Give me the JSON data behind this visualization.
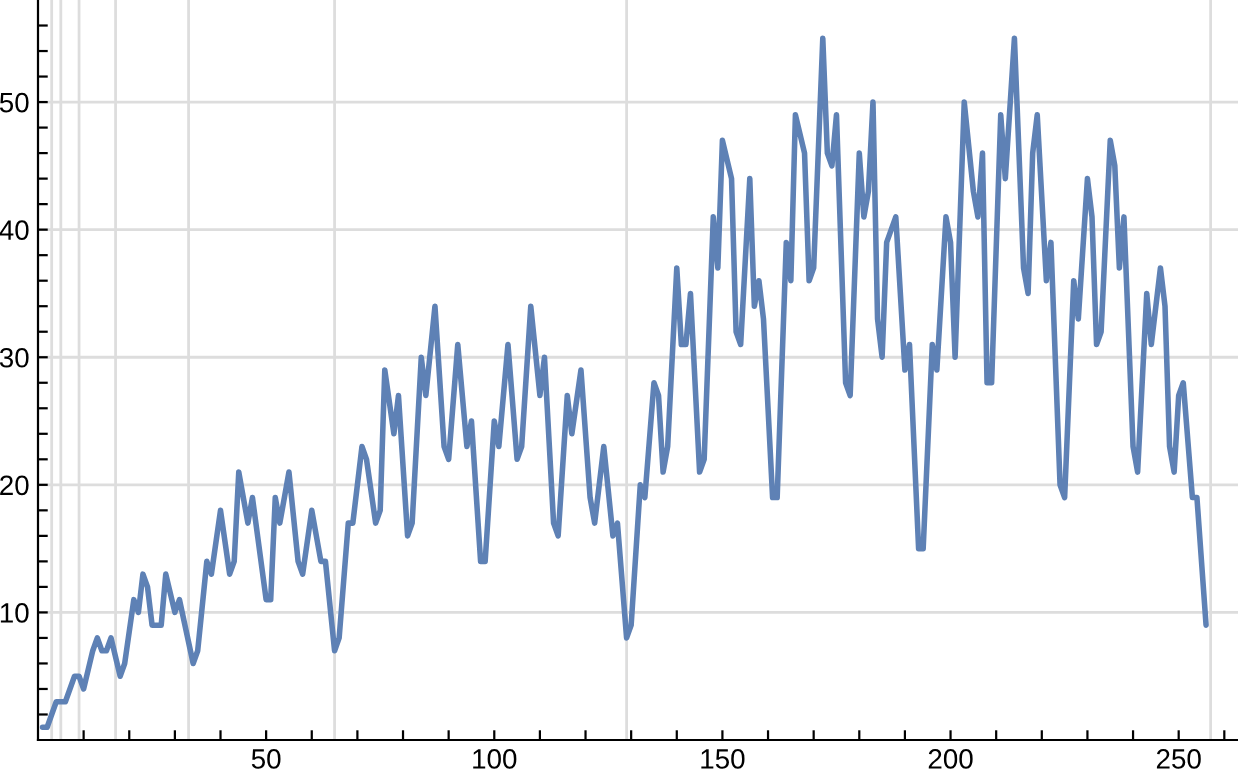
{
  "chart_data": {
    "type": "line",
    "x": [
      1,
      2,
      4,
      6,
      8,
      9,
      10,
      12,
      13,
      14,
      15,
      16,
      18,
      19,
      21,
      22,
      23,
      24,
      25,
      27,
      28,
      30,
      31,
      34,
      35,
      37,
      38,
      40,
      42,
      43,
      44,
      46,
      47,
      50,
      51,
      52,
      53,
      55,
      57,
      58,
      60,
      62,
      63,
      65,
      66,
      68,
      69,
      71,
      72,
      74,
      75,
      76,
      78,
      79,
      81,
      82,
      84,
      85,
      87,
      89,
      90,
      92,
      94,
      95,
      97,
      98,
      100,
      101,
      103,
      105,
      106,
      108,
      110,
      111,
      113,
      114,
      116,
      117,
      119,
      121,
      122,
      124,
      126,
      127,
      129,
      130,
      132,
      133,
      135,
      136,
      137,
      138,
      140,
      141,
      142,
      143,
      145,
      146,
      148,
      149,
      150,
      152,
      153,
      154,
      156,
      157,
      158,
      159,
      161,
      162,
      164,
      165,
      166,
      168,
      169,
      170,
      172,
      173,
      174,
      175,
      177,
      178,
      180,
      181,
      182,
      183,
      184,
      185,
      186,
      188,
      190,
      191,
      193,
      194,
      196,
      197,
      199,
      200,
      201,
      203,
      205,
      206,
      207,
      208,
      209,
      211,
      212,
      214,
      216,
      217,
      218,
      219,
      221,
      222,
      224,
      225,
      227,
      228,
      230,
      231,
      232,
      233,
      235,
      236,
      237,
      238,
      240,
      241,
      243,
      244,
      246,
      247,
      248,
      249,
      250,
      251,
      253,
      254,
      256
    ],
    "series": [
      {
        "color": "#5e81b5",
        "values": [
          1,
          1,
          3,
          3,
          5,
          5,
          4,
          7,
          8,
          7,
          7,
          8,
          5,
          6,
          11,
          10,
          13,
          12,
          9,
          9,
          13,
          10,
          11,
          6,
          7,
          14,
          13,
          18,
          13,
          14,
          21,
          17,
          19,
          11,
          11,
          19,
          17,
          21,
          14,
          13,
          18,
          14,
          14,
          7,
          8,
          17,
          17,
          23,
          22,
          17,
          18,
          29,
          24,
          27,
          16,
          17,
          30,
          27,
          34,
          23,
          22,
          31,
          23,
          25,
          14,
          14,
          25,
          23,
          31,
          22,
          23,
          34,
          27,
          30,
          17,
          16,
          27,
          24,
          29,
          19,
          17,
          23,
          16,
          17,
          8,
          9,
          20,
          19,
          28,
          27,
          21,
          23,
          37,
          31,
          31,
          35,
          21,
          22,
          41,
          37,
          47,
          44,
          32,
          31,
          44,
          34,
          36,
          33,
          19,
          19,
          39,
          36,
          49,
          46,
          36,
          37,
          55,
          46,
          45,
          49,
          28,
          27,
          46,
          41,
          43,
          50,
          33,
          30,
          39,
          41,
          29,
          31,
          15,
          15,
          31,
          29,
          41,
          39,
          30,
          50,
          43,
          41,
          46,
          28,
          28,
          49,
          44,
          55,
          37,
          35,
          46,
          49,
          36,
          39,
          20,
          19,
          36,
          33,
          44,
          41,
          31,
          32,
          47,
          45,
          37,
          41,
          23,
          21,
          35,
          31,
          37,
          34,
          23,
          21,
          27,
          28,
          19,
          19,
          9
        ]
      }
    ],
    "xlim": [
      0,
      263
    ],
    "ylim": [
      0,
      58
    ],
    "xticks": [
      {
        "value": 10,
        "label": null
      },
      {
        "value": 20,
        "label": null
      },
      {
        "value": 30,
        "label": null
      },
      {
        "value": 40,
        "label": null
      },
      50,
      {
        "value": 60,
        "label": null
      },
      {
        "value": 70,
        "label": null
      },
      {
        "value": 80,
        "label": null
      },
      {
        "value": 90,
        "label": null
      },
      100,
      {
        "value": 110,
        "label": null
      },
      {
        "value": 120,
        "label": null
      },
      {
        "value": 130,
        "label": null
      },
      {
        "value": 140,
        "label": null
      },
      150,
      {
        "value": 160,
        "label": null
      },
      {
        "value": 170,
        "label": null
      },
      {
        "value": 180,
        "label": null
      },
      {
        "value": 190,
        "label": null
      },
      200,
      {
        "value": 210,
        "label": null
      },
      {
        "value": 220,
        "label": null
      },
      {
        "value": 230,
        "label": null
      },
      {
        "value": 240,
        "label": null
      },
      250,
      {
        "value": 260,
        "label": null
      }
    ],
    "yticks": [
      {
        "value": 2,
        "label": null
      },
      {
        "value": 4,
        "label": null
      },
      {
        "value": 6,
        "label": null
      },
      {
        "value": 8,
        "label": null
      },
      10,
      {
        "value": 12,
        "label": null
      },
      {
        "value": 14,
        "label": null
      },
      {
        "value": 16,
        "label": null
      },
      {
        "value": 18,
        "label": null
      },
      20,
      {
        "value": 22,
        "label": null
      },
      {
        "value": 24,
        "label": null
      },
      {
        "value": 26,
        "label": null
      },
      {
        "value": 28,
        "label": null
      },
      30,
      {
        "value": 32,
        "label": null
      },
      {
        "value": 34,
        "label": null
      },
      {
        "value": 36,
        "label": null
      },
      {
        "value": 38,
        "label": null
      },
      40,
      {
        "value": 42,
        "label": null
      },
      {
        "value": 44,
        "label": null
      },
      {
        "value": 46,
        "label": null
      },
      {
        "value": 48,
        "label": null
      },
      50,
      {
        "value": 52,
        "label": null
      },
      {
        "value": 54,
        "label": null
      },
      {
        "value": 56,
        "label": null
      }
    ],
    "grid": "y",
    "ref_lines": [
      {
        "axis": "x",
        "value": 3,
        "color": "#dddddd"
      },
      {
        "axis": "x",
        "value": 5,
        "color": "#dddddd"
      },
      {
        "axis": "x",
        "value": 9,
        "color": "#dddddd"
      },
      {
        "axis": "x",
        "value": 17,
        "color": "#dddddd"
      },
      {
        "axis": "x",
        "value": 33,
        "color": "#dddddd"
      },
      {
        "axis": "x",
        "value": 65,
        "color": "#dddddd"
      },
      {
        "axis": "x",
        "value": 129,
        "color": "#dddddd"
      },
      {
        "axis": "x",
        "value": 257,
        "color": "#dddddd"
      }
    ],
    "marker": "none",
    "line_style": "solid"
  }
}
